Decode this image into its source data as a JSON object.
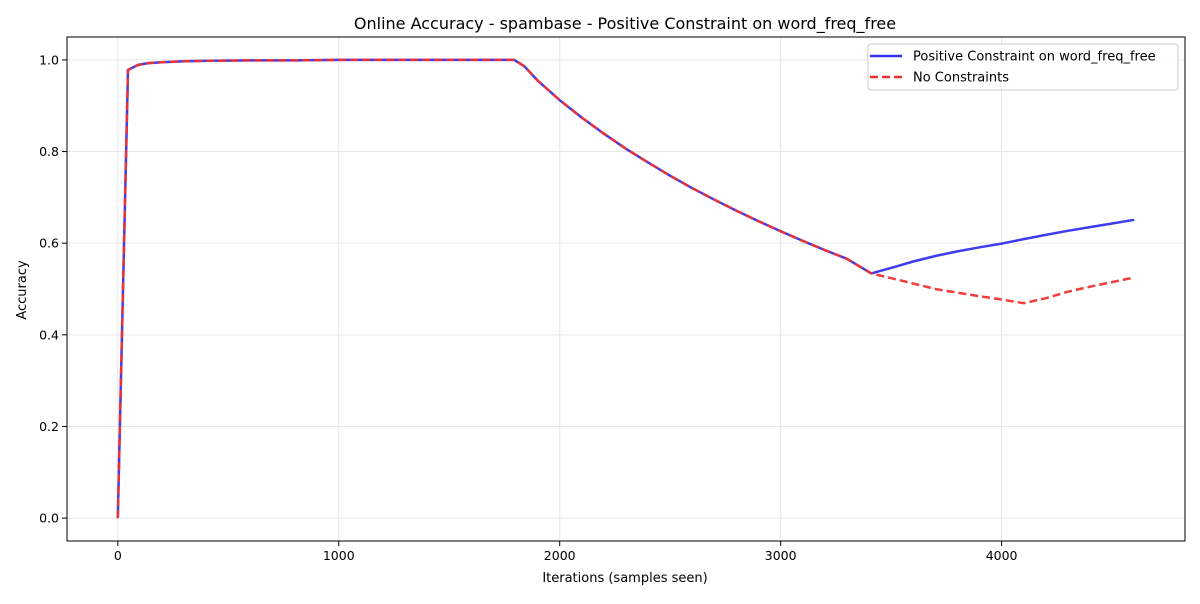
{
  "chart_data": {
    "type": "line",
    "title": "Online Accuracy - spambase - Positive Constraint on word_freq_free",
    "xlabel": "Iterations (samples seen)",
    "ylabel": "Accuracy",
    "xlim": [
      -230,
      4830
    ],
    "ylim": [
      -0.05,
      1.05
    ],
    "x_ticks": [
      0,
      1000,
      2000,
      3000,
      4000
    ],
    "x_tick_labels": [
      "0",
      "1000",
      "2000",
      "3000",
      "4000"
    ],
    "y_ticks": [
      0.0,
      0.2,
      0.4,
      0.6,
      0.8,
      1.0
    ],
    "y_tick_labels": [
      "0.0",
      "0.2",
      "0.4",
      "0.6",
      "0.8",
      "1.0"
    ],
    "grid": true,
    "legend_position": "upper-right",
    "series": [
      {
        "name": "Positive Constraint on word_freq_free",
        "color": "#3333ee",
        "style": "solid",
        "x": [
          0,
          46,
          92,
          138,
          200,
          300,
          400,
          600,
          800,
          1000,
          1200,
          1400,
          1600,
          1794,
          1840,
          1900,
          2000,
          2100,
          2200,
          2300,
          2400,
          2500,
          2600,
          2700,
          2800,
          2900,
          3000,
          3100,
          3200,
          3300,
          3410,
          3500,
          3600,
          3700,
          3800,
          3900,
          4000,
          4100,
          4200,
          4300,
          4400,
          4500,
          4600
        ],
        "y": [
          0.0,
          0.978,
          0.989,
          0.993,
          0.995,
          0.997,
          0.998,
          0.999,
          0.999,
          1.0,
          1.0,
          1.0,
          1.0,
          1.0,
          0.986,
          0.955,
          0.912,
          0.874,
          0.839,
          0.806,
          0.776,
          0.747,
          0.72,
          0.695,
          0.671,
          0.648,
          0.626,
          0.605,
          0.585,
          0.566,
          0.534,
          0.546,
          0.56,
          0.572,
          0.582,
          0.591,
          0.599,
          0.609,
          0.618,
          0.627,
          0.635,
          0.643,
          0.651
        ]
      },
      {
        "name": "No Constraints",
        "color": "#ee3333",
        "style": "dashed",
        "x": [
          0,
          46,
          92,
          138,
          200,
          300,
          400,
          600,
          800,
          1000,
          1200,
          1400,
          1600,
          1794,
          1840,
          1900,
          2000,
          2100,
          2200,
          2300,
          2400,
          2500,
          2600,
          2700,
          2800,
          2900,
          3000,
          3100,
          3200,
          3300,
          3410,
          3550,
          3700,
          3850,
          4000,
          4100,
          4200,
          4300,
          4400,
          4500,
          4600
        ],
        "y": [
          0.0,
          0.978,
          0.989,
          0.993,
          0.995,
          0.997,
          0.998,
          0.999,
          0.999,
          1.0,
          1.0,
          1.0,
          1.0,
          1.0,
          0.986,
          0.955,
          0.912,
          0.874,
          0.839,
          0.806,
          0.776,
          0.747,
          0.72,
          0.695,
          0.671,
          0.648,
          0.626,
          0.605,
          0.585,
          0.566,
          0.534,
          0.518,
          0.5,
          0.488,
          0.477,
          0.469,
          0.48,
          0.494,
          0.505,
          0.515,
          0.525
        ]
      }
    ]
  }
}
